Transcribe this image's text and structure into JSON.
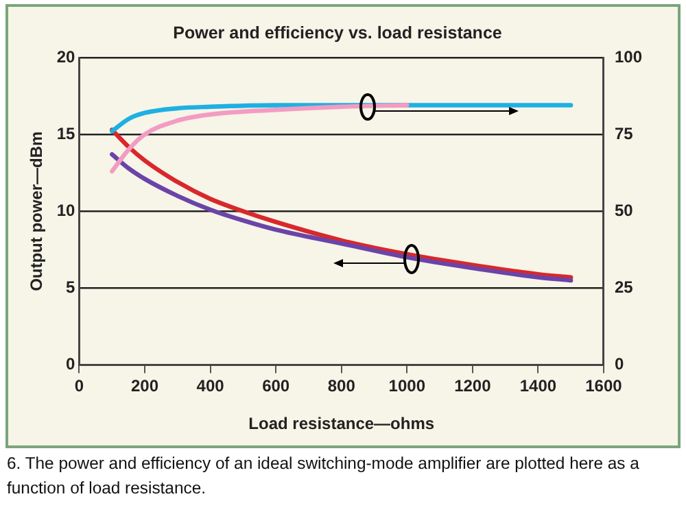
{
  "chart_data": {
    "type": "line",
    "title": "Power and efficiency vs. load resistance",
    "xlabel": "Load resistance—ohms",
    "ylabel": "Output power—dBm",
    "xlim": [
      0,
      1600
    ],
    "xticks": [
      0,
      200,
      400,
      600,
      800,
      1000,
      1200,
      1400,
      1600
    ],
    "ylim": [
      0,
      20
    ],
    "yticks": [
      0,
      5,
      10,
      15,
      20
    ],
    "y2lim": [
      0,
      100
    ],
    "y2ticks": [
      0,
      25,
      50,
      75,
      100
    ],
    "grid": "y",
    "legend": false,
    "marker": "none",
    "line_style": "solid",
    "annotations": [
      "6. The power and efficiency of an ideal switching-mode amplifier are plotted here as a function of load resistance."
    ],
    "series": [
      {
        "color": "#f29cc3",
        "axis": "y2",
        "x": [
          100,
          150,
          200,
          300,
          400,
          600,
          800,
          1000
        ],
        "values": [
          63,
          70,
          75,
          79.5,
          81.5,
          83,
          84,
          84.5
        ]
      },
      {
        "color": "#1eb0e2",
        "axis": "y2",
        "x": [
          100,
          150,
          200,
          300,
          400,
          600,
          800,
          1000,
          1500
        ],
        "values": [
          76,
          80,
          82,
          83.5,
          84,
          84.5,
          84.5,
          84.5,
          84.5
        ]
      },
      {
        "color": "#6a44a8",
        "x": [
          100,
          150,
          200,
          300,
          400,
          500,
          600,
          800,
          1000,
          1200,
          1400,
          1500
        ],
        "values": [
          13.7,
          12.8,
          12.1,
          11,
          10.1,
          9.4,
          8.8,
          7.9,
          7,
          6.3,
          5.7,
          5.5
        ]
      },
      {
        "color": "#d8282c",
        "x": [
          100,
          150,
          200,
          300,
          400,
          500,
          600,
          800,
          1000,
          1200,
          1400,
          1500
        ],
        "values": [
          15.3,
          14.2,
          13.3,
          11.9,
          10.8,
          10,
          9.3,
          8.1,
          7.2,
          6.5,
          5.9,
          5.7
        ]
      }
    ]
  }
}
